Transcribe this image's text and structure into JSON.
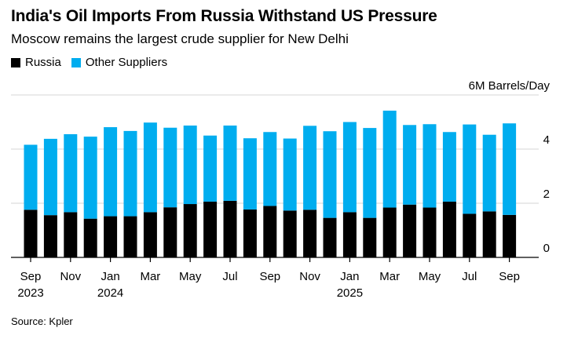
{
  "chart_data": {
    "type": "bar",
    "stacked": true,
    "title": "India's Oil Imports From Russia Withstand US Pressure",
    "subtitle": "Moscow remains the largest crude supplier for New Delhi",
    "ylabel": "6M Barrels/Day",
    "ylim": [
      0,
      6
    ],
    "yticks": [
      {
        "value": 0,
        "label": "0"
      },
      {
        "value": 2,
        "label": "2"
      },
      {
        "value": 4,
        "label": "4"
      }
    ],
    "grid": true,
    "legend_position": "top-left",
    "categories": [
      "Sep 2023",
      "Oct 2023",
      "Nov 2023",
      "Dec 2023",
      "Jan 2024",
      "Feb 2024",
      "Mar 2024",
      "Apr 2024",
      "May 2024",
      "Jun 2024",
      "Jul 2024",
      "Aug 2024",
      "Sep 2024",
      "Oct 2024",
      "Nov 2024",
      "Dec 2024",
      "Jan 2025",
      "Feb 2025",
      "Mar 2025",
      "Apr 2025",
      "May 2025",
      "Jun 2025",
      "Jul 2025",
      "Aug 2025",
      "Sep 2025"
    ],
    "x_tick_labels": [
      {
        "index": 0,
        "month": "Sep",
        "year": "2023"
      },
      {
        "index": 2,
        "month": "Nov",
        "year": ""
      },
      {
        "index": 4,
        "month": "Jan",
        "year": "2024"
      },
      {
        "index": 6,
        "month": "Mar",
        "year": ""
      },
      {
        "index": 8,
        "month": "May",
        "year": ""
      },
      {
        "index": 10,
        "month": "Jul",
        "year": ""
      },
      {
        "index": 12,
        "month": "Sep",
        "year": ""
      },
      {
        "index": 14,
        "month": "Nov",
        "year": ""
      },
      {
        "index": 16,
        "month": "Jan",
        "year": "2025"
      },
      {
        "index": 18,
        "month": "Mar",
        "year": ""
      },
      {
        "index": 20,
        "month": "May",
        "year": ""
      },
      {
        "index": 22,
        "month": "Jul",
        "year": ""
      },
      {
        "index": 24,
        "month": "Sep",
        "year": ""
      }
    ],
    "series": [
      {
        "name": "Russia",
        "color": "#000000",
        "values": [
          1.76,
          1.56,
          1.67,
          1.43,
          1.52,
          1.52,
          1.67,
          1.85,
          1.97,
          2.06,
          2.09,
          1.77,
          1.9,
          1.73,
          1.76,
          1.46,
          1.67,
          1.46,
          1.84,
          1.95,
          1.84,
          2.06,
          1.61,
          1.7,
          1.57
        ]
      },
      {
        "name": "Other Suppliers",
        "color": "#00ADEF",
        "values": [
          2.4,
          2.82,
          2.88,
          3.03,
          3.29,
          3.15,
          3.31,
          2.94,
          2.9,
          2.44,
          2.78,
          2.63,
          2.73,
          2.66,
          3.1,
          3.2,
          3.33,
          3.32,
          3.58,
          2.94,
          3.08,
          2.57,
          3.3,
          2.83,
          3.38
        ]
      }
    ]
  },
  "source": "Source: Kpler"
}
